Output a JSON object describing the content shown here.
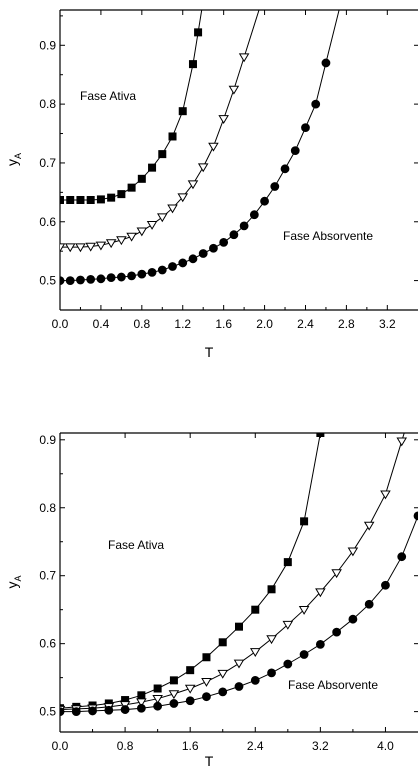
{
  "chart_data": [
    {
      "type": "line",
      "title": "",
      "xlabel": "T",
      "ylabel": "y",
      "ylabel_sub": "A",
      "xlim": [
        0.0,
        3.5
      ],
      "ylim": [
        0.45,
        0.96
      ],
      "xticks": [
        0.0,
        0.4,
        0.8,
        1.2,
        1.6,
        2.0,
        2.4,
        2.8,
        3.2
      ],
      "xtick_labels": [
        "0.0",
        "0.4",
        "0.8",
        "1.2",
        "1.6",
        "2.0",
        "2.4",
        "2.8",
        "3.2"
      ],
      "yticks": [
        0.5,
        0.6,
        0.7,
        0.8,
        0.9
      ],
      "ytick_labels": [
        "0.5",
        "0.6",
        "0.7",
        "0.8",
        "0.9"
      ],
      "grid": false,
      "annotations": [
        {
          "text": "Fase Ativa",
          "x": 0.35,
          "y": 0.78
        },
        {
          "text": "Fase Absorvente",
          "x": 2.8,
          "y": 0.585
        }
      ],
      "series": [
        {
          "marker": "square",
          "x": [
            0.0,
            0.1,
            0.2,
            0.3,
            0.4,
            0.5,
            0.6,
            0.7,
            0.8,
            0.9,
            1.0,
            1.1,
            1.2,
            1.3,
            1.35
          ],
          "y": [
            0.637,
            0.637,
            0.637,
            0.637,
            0.638,
            0.641,
            0.647,
            0.658,
            0.673,
            0.692,
            0.715,
            0.745,
            0.788,
            0.868,
            0.922
          ]
        },
        {
          "marker": "triangle-down",
          "x": [
            0.0,
            0.1,
            0.2,
            0.3,
            0.4,
            0.5,
            0.6,
            0.7,
            0.8,
            0.9,
            1.0,
            1.1,
            1.2,
            1.3,
            1.4,
            1.5,
            1.6,
            1.7,
            1.8
          ],
          "y": [
            0.557,
            0.557,
            0.557,
            0.558,
            0.56,
            0.564,
            0.569,
            0.575,
            0.584,
            0.595,
            0.608,
            0.623,
            0.642,
            0.664,
            0.693,
            0.728,
            0.775,
            0.825,
            0.88
          ]
        },
        {
          "marker": "circle",
          "x": [
            0.0,
            0.1,
            0.2,
            0.3,
            0.4,
            0.5,
            0.6,
            0.7,
            0.8,
            0.9,
            1.0,
            1.1,
            1.2,
            1.3,
            1.4,
            1.5,
            1.6,
            1.7,
            1.8,
            1.9,
            2.0,
            2.1,
            2.2,
            2.3,
            2.4,
            2.5,
            2.6
          ],
          "y": [
            0.5,
            0.5,
            0.501,
            0.502,
            0.503,
            0.505,
            0.506,
            0.508,
            0.511,
            0.514,
            0.518,
            0.524,
            0.53,
            0.537,
            0.546,
            0.555,
            0.565,
            0.578,
            0.593,
            0.612,
            0.635,
            0.66,
            0.69,
            0.721,
            0.76,
            0.8,
            0.87
          ]
        }
      ]
    },
    {
      "type": "line",
      "title": "",
      "xlabel": "T",
      "ylabel": "y",
      "ylabel_sub": "A",
      "xlim": [
        0.0,
        4.4
      ],
      "ylim": [
        0.47,
        0.91
      ],
      "xticks": [
        0.0,
        0.8,
        1.6,
        2.4,
        3.2,
        4.0
      ],
      "xtick_labels": [
        "0.0",
        "0.8",
        "1.6",
        "2.4",
        "3.2",
        "4.0"
      ],
      "yticks": [
        0.5,
        0.6,
        0.7,
        0.8,
        0.9
      ],
      "ytick_labels": [
        "0.5",
        "0.6",
        "0.7",
        "0.8",
        "0.9"
      ],
      "grid": false,
      "annotations": [
        {
          "text": "Fase Ativa",
          "x": 1.45,
          "y": 0.74
        },
        {
          "text": "Fase Absorvente",
          "x": 3.5,
          "y": 0.545
        }
      ],
      "series": [
        {
          "marker": "square",
          "x": [
            0.0,
            0.2,
            0.4,
            0.6,
            0.8,
            1.0,
            1.2,
            1.4,
            1.6,
            1.8,
            2.0,
            2.2,
            2.4,
            2.6,
            2.8,
            3.0,
            3.2
          ],
          "y": [
            0.505,
            0.507,
            0.509,
            0.512,
            0.517,
            0.524,
            0.534,
            0.546,
            0.561,
            0.58,
            0.602,
            0.625,
            0.65,
            0.68,
            0.72,
            0.78,
            0.91
          ]
        },
        {
          "marker": "triangle-down",
          "x": [
            0.0,
            0.2,
            0.4,
            0.6,
            0.8,
            1.0,
            1.2,
            1.4,
            1.6,
            1.8,
            2.0,
            2.2,
            2.4,
            2.6,
            2.8,
            3.0,
            3.2,
            3.4,
            3.6,
            3.8,
            4.0,
            4.2
          ],
          "y": [
            0.503,
            0.504,
            0.505,
            0.507,
            0.51,
            0.514,
            0.519,
            0.526,
            0.534,
            0.544,
            0.556,
            0.571,
            0.588,
            0.607,
            0.628,
            0.65,
            0.676,
            0.704,
            0.736,
            0.774,
            0.82,
            0.898
          ]
        },
        {
          "marker": "circle",
          "x": [
            0.0,
            0.2,
            0.4,
            0.6,
            0.8,
            1.0,
            1.2,
            1.4,
            1.6,
            1.8,
            2.0,
            2.2,
            2.4,
            2.6,
            2.8,
            3.0,
            3.2,
            3.4,
            3.6,
            3.8,
            4.0,
            4.2,
            4.4
          ],
          "y": [
            0.5,
            0.5,
            0.501,
            0.502,
            0.503,
            0.505,
            0.508,
            0.512,
            0.516,
            0.522,
            0.529,
            0.537,
            0.546,
            0.557,
            0.57,
            0.584,
            0.599,
            0.617,
            0.636,
            0.658,
            0.686,
            0.728,
            0.788
          ]
        }
      ]
    }
  ]
}
